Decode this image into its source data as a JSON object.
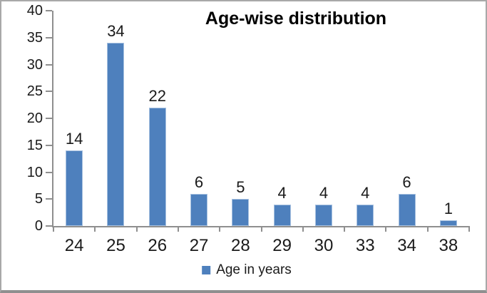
{
  "chart_data": {
    "type": "bar",
    "title": "Age-wise distribution",
    "categories": [
      "24",
      "25",
      "26",
      "27",
      "28",
      "29",
      "30",
      "33",
      "34",
      "38"
    ],
    "values": [
      14,
      34,
      22,
      6,
      5,
      4,
      4,
      4,
      6,
      1
    ],
    "series_name": "Age in years",
    "legend": "Age in years",
    "legend_position": "bottom",
    "xlabel": "",
    "ylabel": "",
    "ylim": [
      0,
      40
    ],
    "y_ticks": [
      0,
      5,
      10,
      15,
      20,
      25,
      30,
      35,
      40
    ],
    "grid": "off",
    "data_labels": "above-bars",
    "colors": {
      "bar_fill": "#4E80BD",
      "bar_border": "#A7C1E0",
      "axis": "#8F8F8F",
      "text": "#1A1A1A",
      "frame_border": "#A9A9A9"
    }
  }
}
